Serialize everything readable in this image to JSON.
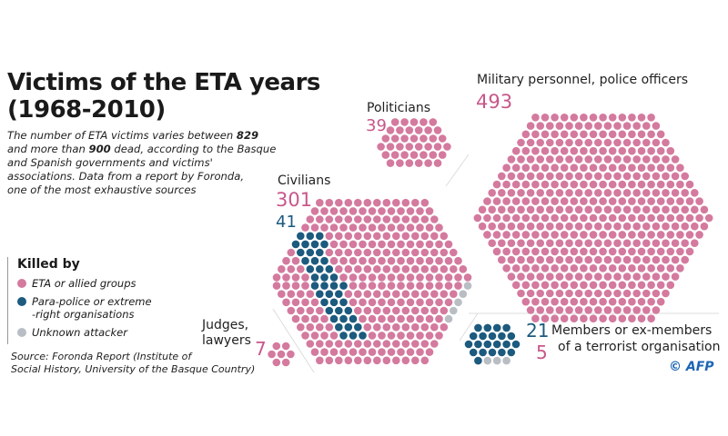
{
  "title_lines": [
    "Victims of the ETA years",
    "(1968-2010)"
  ],
  "description": {
    "lines": [
      [
        "The number of ETA victims varies between ",
        "829",
        ""
      ],
      [
        "and more than ",
        "900",
        " dead, according to the Basque"
      ],
      [
        "and Spanish governments and victims'",
        "",
        ""
      ],
      [
        "associations. Data from a report by Foronda,",
        "",
        ""
      ],
      [
        "one of the most exhaustive sources",
        "",
        ""
      ]
    ]
  },
  "legend": {
    "heading": "Killed by",
    "items": [
      {
        "lines": [
          "ETA or allied groups"
        ],
        "color": "#d47a9e"
      },
      {
        "lines": [
          "Para-police or extreme",
          "-right organisations"
        ],
        "color": "#1c5a7e"
      },
      {
        "lines": [
          "Unknown attacker"
        ],
        "color": "#b9bec4"
      }
    ]
  },
  "source": [
    "Source: Foronda Report (Institute of",
    "Social History, University of the Basque Country)"
  ],
  "credit": "© AFP",
  "colors": {
    "eta": "#d47a9e",
    "para": "#1c5a7e",
    "unknown": "#b9bec4",
    "eta_label": "#c8578a",
    "para_label": "#1c5a7e"
  },
  "chart_data": {
    "type": "unit-dot",
    "groups": [
      {
        "label": "Military personnel, police officers",
        "eta": 493,
        "eta_label": "493"
      },
      {
        "label": "Politicians",
        "eta": 39,
        "eta_label": "39"
      },
      {
        "label": "Civilians",
        "eta": 301,
        "para": 41,
        "unknown": 5,
        "eta_label": "301",
        "para_label": "41"
      },
      {
        "label_lines": [
          "Judges,",
          "lawyers"
        ],
        "eta": 7,
        "eta_label": "7"
      },
      {
        "label_lines": [
          "Members or ex-members",
          "of a terrorist organisation"
        ],
        "para": 21,
        "eta": 5,
        "unknown": 3,
        "para_label": "21",
        "eta_label": "5"
      }
    ]
  }
}
